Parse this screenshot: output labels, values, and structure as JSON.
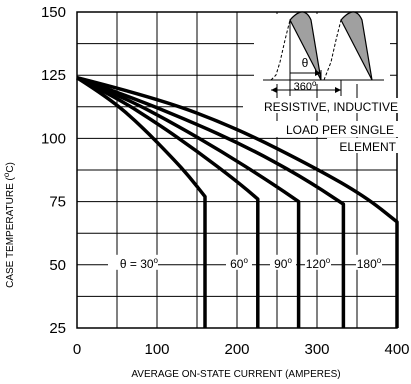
{
  "chart_data": {
    "type": "line",
    "xlabel": "AVERAGE ON-STATE  CURRENT (AMPERES)",
    "ylabel_main": "CASE TEMPERATURE (",
    "ylabel_unit": "C)",
    "xlim": [
      0,
      400
    ],
    "ylim": [
      25,
      150
    ],
    "xticks": [
      0,
      100,
      200,
      300,
      400
    ],
    "yticks": [
      25,
      50,
      75,
      100,
      125,
      150
    ],
    "grid": true,
    "series": [
      {
        "label": "θ = 30",
        "points": [
          [
            0,
            124
          ],
          [
            40,
            116
          ],
          [
            80,
            105
          ],
          [
            120,
            92
          ],
          [
            140,
            85
          ],
          [
            160,
            77
          ],
          [
            160,
            25
          ]
        ]
      },
      {
        "label": "60",
        "points": [
          [
            0,
            124
          ],
          [
            50,
            116
          ],
          [
            100,
            106
          ],
          [
            150,
            95
          ],
          [
            200,
            83
          ],
          [
            226,
            76
          ],
          [
            226,
            25
          ]
        ]
      },
      {
        "label": "90",
        "points": [
          [
            0,
            124
          ],
          [
            60,
            116
          ],
          [
            120,
            106
          ],
          [
            180,
            95
          ],
          [
            240,
            83
          ],
          [
            277,
            75
          ],
          [
            277,
            25
          ]
        ]
      },
      {
        "label": "120",
        "points": [
          [
            0,
            124
          ],
          [
            70,
            116
          ],
          [
            140,
            107
          ],
          [
            210,
            97
          ],
          [
            280,
            85
          ],
          [
            333,
            74
          ],
          [
            333,
            25
          ]
        ]
      },
      {
        "label": "180",
        "points": [
          [
            0,
            124
          ],
          [
            100,
            116
          ],
          [
            200,
            104
          ],
          [
            300,
            88
          ],
          [
            360,
            77
          ],
          [
            400,
            67
          ],
          [
            400,
            25
          ]
        ]
      }
    ],
    "annotations": {
      "note_line1": "RESISTIVE, INDUCTIVE",
      "note_line2": "LOAD PER SINGLE",
      "note_line3": "ELEMENT",
      "angle_symbol": "θ",
      "period_label": "360",
      "degree_mark": "o"
    }
  }
}
